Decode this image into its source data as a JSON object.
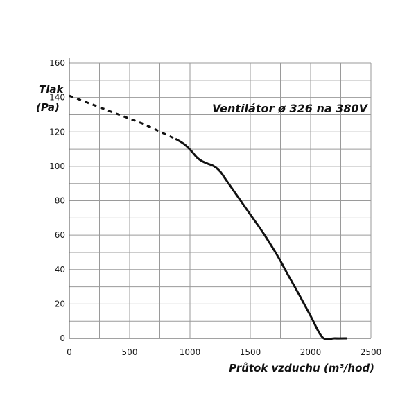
{
  "chart_data": {
    "type": "line",
    "title": "Ventilátor ø 326 na 380V",
    "xlabel": "Průtok vzduchu (m³/hod)",
    "ylabel_line1": "Tlak",
    "ylabel_line2": "(Pa)",
    "xlim": [
      0,
      2500
    ],
    "ylim": [
      0,
      160
    ],
    "x_ticks": [
      0,
      500,
      1000,
      1500,
      2000,
      2500
    ],
    "y_ticks": [
      0,
      20,
      40,
      60,
      80,
      100,
      120,
      140,
      160
    ],
    "x_tick_labels": [
      "0",
      "500",
      "1000",
      "1500",
      "2000",
      "2500"
    ],
    "y_tick_labels": [
      "0",
      "20",
      "40",
      "60",
      "80",
      "100",
      "120",
      "140",
      "160"
    ],
    "grid": true,
    "series": [
      {
        "style": "dashed",
        "x": [
          0,
          300,
          600,
          880
        ],
        "y": [
          141,
          133,
          125,
          116
        ]
      },
      {
        "style": "solid",
        "x": [
          880,
          950,
          1010,
          1060,
          1100,
          1150,
          1200,
          1250,
          1300,
          1400,
          1500,
          1600,
          1700,
          1750,
          1800,
          1900,
          2000,
          2100,
          2200,
          2300
        ],
        "y": [
          116,
          113,
          109,
          105,
          103,
          101.5,
          100,
          97,
          92,
          82,
          72,
          62,
          51,
          45,
          38.5,
          26,
          13,
          0.5,
          0,
          0
        ]
      }
    ]
  }
}
